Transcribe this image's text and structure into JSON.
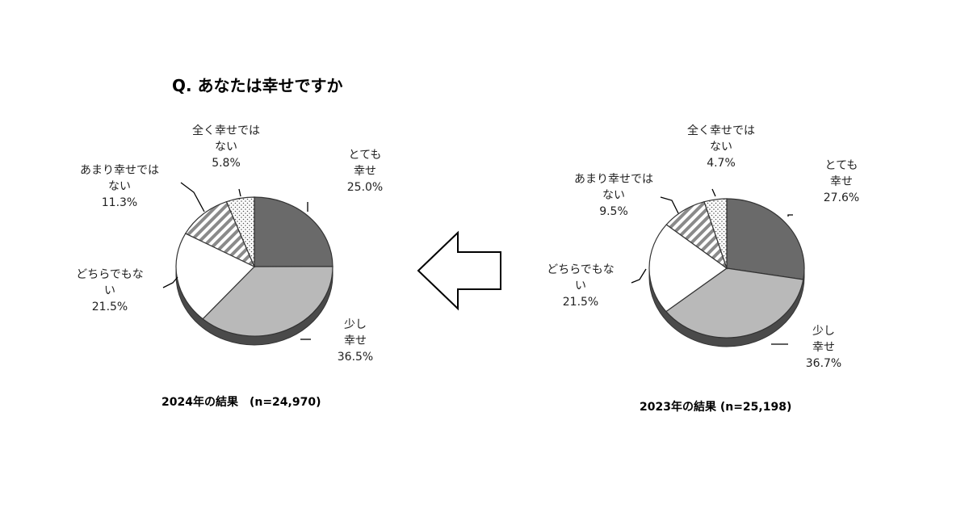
{
  "question": "Q. あなたは幸せですか",
  "chart_data": [
    {
      "type": "pie",
      "caption": "2024年の結果　(n=24,970)",
      "categories": [
        "とても幸せ",
        "少し幸せ",
        "どちらでもない",
        "あまり幸せではない",
        "全く幸せではない"
      ],
      "values": [
        25.0,
        36.5,
        21.5,
        11.3,
        5.8
      ],
      "label_lines": [
        [
          "とても",
          "幸せ",
          "25.0%"
        ],
        [
          "少し",
          "幸せ",
          "36.5%"
        ],
        [
          "どちらでもな",
          "い",
          "21.5%"
        ],
        [
          "あまり幸せでは",
          "ない",
          "11.3%"
        ],
        [
          "全く幸せでは",
          "ない",
          "5.8%"
        ]
      ]
    },
    {
      "type": "pie",
      "caption": "2023年の結果 (n=25,198)",
      "categories": [
        "とても幸せ",
        "少し幸せ",
        "どちらでもない",
        "あまり幸せではない",
        "全く幸せではない"
      ],
      "values": [
        27.6,
        36.7,
        21.5,
        9.5,
        4.7
      ],
      "label_lines": [
        [
          "とても",
          "幸せ",
          "27.6%"
        ],
        [
          "少し",
          "幸せ",
          "36.7%"
        ],
        [
          "どちらでもな",
          "い",
          "21.5%"
        ],
        [
          "あまり幸せでは",
          "ない",
          "9.5%"
        ],
        [
          "全く幸せでは",
          "ない",
          "4.7%"
        ]
      ]
    }
  ],
  "colors": {
    "very_happy": "#6a6a6a",
    "somewhat_happy": "#b9b9b9",
    "neutral": "#ffffff",
    "not_very_happy": "hatch",
    "not_at_all_happy": "dots",
    "outline": "#333333",
    "depth": "#4a4a4a"
  },
  "arrow": {
    "direction": "left",
    "icon": "left-arrow-icon"
  }
}
